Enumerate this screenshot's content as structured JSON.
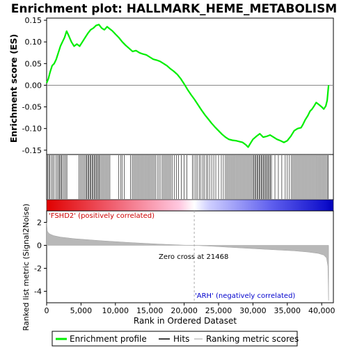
{
  "chart_data": {
    "type": "line",
    "title": "Enrichment plot: HALLMARK_HEME_METABOLISM",
    "top_panel": {
      "ylabel": "Enrichment score (ES)",
      "ylim": [
        -0.16,
        0.155
      ],
      "yticks": [
        -0.15,
        -0.1,
        -0.05,
        0.0,
        0.05,
        0.1,
        0.15
      ],
      "ytick_labels": [
        "-0.15",
        "-0.10",
        "-0.05",
        "0.00",
        "0.05",
        "0.10",
        "0.15"
      ],
      "series": [
        {
          "name": "Enrichment profile",
          "color": "#00ee00",
          "x": [
            0,
            250,
            500,
            800,
            1100,
            1400,
            1700,
            2000,
            2300,
            2600,
            2900,
            3200,
            3600,
            4000,
            4400,
            4800,
            5200,
            5600,
            6000,
            6400,
            6800,
            7200,
            7600,
            8000,
            8400,
            8800,
            9200,
            9600,
            10000,
            10500,
            11000,
            11500,
            12000,
            12500,
            13000,
            13500,
            14000,
            14500,
            15000,
            15500,
            16000,
            16500,
            17000,
            17500,
            18000,
            18500,
            19000,
            19500,
            20000,
            20500,
            21000,
            21468,
            22000,
            22500,
            23000,
            23500,
            24000,
            24500,
            25000,
            25500,
            26000,
            26500,
            27000,
            27500,
            28000,
            28500,
            29000,
            29300,
            29600,
            30000,
            30500,
            31000,
            31500,
            32000,
            32500,
            33000,
            33500,
            34000,
            34500,
            35000,
            35500,
            36000,
            36500,
            37000,
            37300,
            37600,
            38000,
            38300,
            38600,
            38900,
            39200,
            39600,
            40000,
            40300,
            40600,
            40800,
            41000
          ],
          "y": [
            0.005,
            0.015,
            0.03,
            0.045,
            0.05,
            0.06,
            0.075,
            0.09,
            0.1,
            0.11,
            0.125,
            0.115,
            0.1,
            0.09,
            0.095,
            0.09,
            0.1,
            0.11,
            0.12,
            0.128,
            0.132,
            0.138,
            0.14,
            0.132,
            0.128,
            0.135,
            0.13,
            0.125,
            0.118,
            0.11,
            0.1,
            0.092,
            0.085,
            0.078,
            0.08,
            0.075,
            0.072,
            0.07,
            0.065,
            0.06,
            0.058,
            0.055,
            0.05,
            0.045,
            0.038,
            0.032,
            0.025,
            0.015,
            0.003,
            -0.01,
            -0.022,
            -0.032,
            -0.045,
            -0.057,
            -0.068,
            -0.078,
            -0.088,
            -0.097,
            -0.105,
            -0.113,
            -0.12,
            -0.125,
            -0.127,
            -0.128,
            -0.13,
            -0.132,
            -0.138,
            -0.143,
            -0.135,
            -0.125,
            -0.118,
            -0.112,
            -0.12,
            -0.118,
            -0.115,
            -0.12,
            -0.125,
            -0.128,
            -0.132,
            -0.128,
            -0.118,
            -0.105,
            -0.1,
            -0.098,
            -0.09,
            -0.08,
            -0.07,
            -0.06,
            -0.055,
            -0.048,
            -0.04,
            -0.045,
            -0.05,
            -0.055,
            -0.048,
            -0.035,
            0.0
          ]
        }
      ]
    },
    "hits": [
      150,
      320,
      480,
      700,
      900,
      1100,
      1350,
      1550,
      1750,
      1900,
      2050,
      2200,
      2400,
      2600,
      2800,
      2950,
      4700,
      4900,
      5100,
      5300,
      5500,
      5700,
      5850,
      6000,
      6150,
      6300,
      6450,
      6600,
      6750,
      6900,
      7050,
      7200,
      7350,
      7500,
      7650,
      7800,
      8000,
      8200,
      8400,
      8600,
      8800,
      9000,
      9200,
      10500,
      10800,
      11000,
      11300,
      12200,
      12450,
      12650,
      12850,
      13050,
      13250,
      13450,
      13650,
      13850,
      14050,
      14250,
      14450,
      14650,
      14850,
      15050,
      15250,
      15450,
      15650,
      15850,
      16100,
      16350,
      16600,
      16850,
      17050,
      17250,
      17450,
      17650,
      17850,
      18050,
      18300,
      18600,
      18900,
      19200,
      19600,
      20000,
      20400,
      21200,
      21450,
      21700,
      21950,
      22200,
      22450,
      22700,
      22950,
      23200,
      23450,
      23700,
      24000,
      24300,
      24600,
      25000,
      25400,
      25700,
      26000,
      26200,
      26400,
      26600,
      26800,
      27000,
      27200,
      27400,
      27600,
      27800,
      28000,
      28200,
      28400,
      28600,
      28800,
      29000,
      29200,
      29400,
      29600,
      29800,
      30000,
      30150,
      30300,
      30450,
      30600,
      30750,
      30900,
      31050,
      31200,
      31350,
      31500,
      31650,
      31800,
      31950,
      32100,
      32250,
      32400,
      32550,
      32700,
      33200,
      33700,
      34200,
      34700,
      35000,
      35300,
      35600,
      35800,
      36000,
      36200,
      36400,
      36600,
      36800,
      37000,
      37200,
      37400,
      37600,
      37800,
      38000,
      38200,
      38400,
      38600,
      38800,
      39000,
      39200,
      39400,
      39600,
      39800,
      40000,
      40200,
      40400,
      40600,
      40800,
      40950
    ],
    "ranked_metric": {
      "ylabel": "Ranked list metric (Signal2Noise)",
      "ylim": [
        -5,
        3
      ],
      "yticks": [
        -4,
        -2,
        0,
        2
      ],
      "ytick_labels": [
        "-4",
        "-2",
        "0",
        "2"
      ],
      "x": [
        0,
        100,
        300,
        600,
        1000,
        2000,
        4000,
        8000,
        12000,
        16000,
        20000,
        21468,
        24000,
        28000,
        32000,
        36000,
        38000,
        39500,
        40300,
        40700,
        40900,
        41000
      ],
      "y": [
        2.0,
        1.25,
        1.05,
        0.95,
        0.85,
        0.72,
        0.58,
        0.4,
        0.25,
        0.12,
        0.02,
        0.0,
        -0.08,
        -0.22,
        -0.35,
        -0.48,
        -0.58,
        -0.7,
        -0.85,
        -1.1,
        -1.8,
        -4.8
      ],
      "zero_cross_label": "Zero cross at 21468",
      "zero_cross_x": 21468,
      "pos_label": "'FSHD2' (positively correlated)",
      "neg_label": "'ARH' (negatively correlated)",
      "pos_color": "#cc0000",
      "neg_color": "#0000cc"
    },
    "xlabel": "Rank in Ordered Dataset",
    "xlim": [
      0,
      41700
    ],
    "xticks": [
      0,
      5000,
      10000,
      15000,
      20000,
      25000,
      30000,
      35000,
      40000
    ],
    "xtick_labels": [
      "0",
      "5,000",
      "10,000",
      "15,000",
      "20,000",
      "25,000",
      "30,000",
      "35,000",
      "40,000"
    ],
    "legend": {
      "placement": "bottom",
      "items": [
        {
          "label": "Enrichment profile",
          "color": "#00ee00"
        },
        {
          "label": "Hits",
          "color": "#000000"
        },
        {
          "label": "Ranking metric scores",
          "color": "#c0c0c0"
        }
      ]
    }
  }
}
